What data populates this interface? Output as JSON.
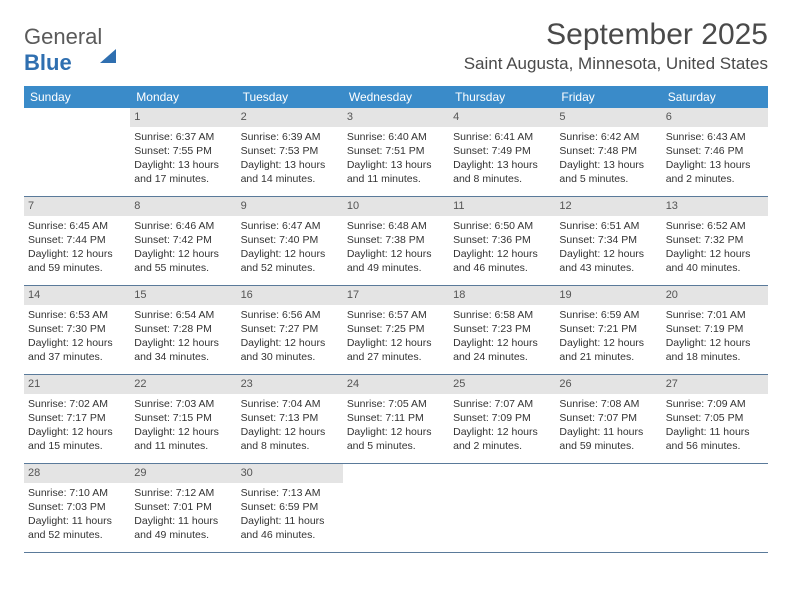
{
  "brand": {
    "part1": "General",
    "part2": "Blue"
  },
  "title": "September 2025",
  "subtitle": "Saint Augusta, Minnesota, United States",
  "colors": {
    "header_bg": "#3a8bc9",
    "header_text": "#ffffff",
    "daynum_bg": "#e4e4e4",
    "text": "#333333",
    "rule": "#5a7a9a",
    "brand_gray": "#5a5a5a",
    "brand_blue": "#2f6fb0"
  },
  "days_of_week": [
    "Sunday",
    "Monday",
    "Tuesday",
    "Wednesday",
    "Thursday",
    "Friday",
    "Saturday"
  ],
  "weeks": [
    [
      {
        "n": "",
        "empty": true
      },
      {
        "n": "1",
        "sr": "Sunrise: 6:37 AM",
        "ss": "Sunset: 7:55 PM",
        "dl1": "Daylight: 13 hours",
        "dl2": "and 17 minutes."
      },
      {
        "n": "2",
        "sr": "Sunrise: 6:39 AM",
        "ss": "Sunset: 7:53 PM",
        "dl1": "Daylight: 13 hours",
        "dl2": "and 14 minutes."
      },
      {
        "n": "3",
        "sr": "Sunrise: 6:40 AM",
        "ss": "Sunset: 7:51 PM",
        "dl1": "Daylight: 13 hours",
        "dl2": "and 11 minutes."
      },
      {
        "n": "4",
        "sr": "Sunrise: 6:41 AM",
        "ss": "Sunset: 7:49 PM",
        "dl1": "Daylight: 13 hours",
        "dl2": "and 8 minutes."
      },
      {
        "n": "5",
        "sr": "Sunrise: 6:42 AM",
        "ss": "Sunset: 7:48 PM",
        "dl1": "Daylight: 13 hours",
        "dl2": "and 5 minutes."
      },
      {
        "n": "6",
        "sr": "Sunrise: 6:43 AM",
        "ss": "Sunset: 7:46 PM",
        "dl1": "Daylight: 13 hours",
        "dl2": "and 2 minutes."
      }
    ],
    [
      {
        "n": "7",
        "sr": "Sunrise: 6:45 AM",
        "ss": "Sunset: 7:44 PM",
        "dl1": "Daylight: 12 hours",
        "dl2": "and 59 minutes."
      },
      {
        "n": "8",
        "sr": "Sunrise: 6:46 AM",
        "ss": "Sunset: 7:42 PM",
        "dl1": "Daylight: 12 hours",
        "dl2": "and 55 minutes."
      },
      {
        "n": "9",
        "sr": "Sunrise: 6:47 AM",
        "ss": "Sunset: 7:40 PM",
        "dl1": "Daylight: 12 hours",
        "dl2": "and 52 minutes."
      },
      {
        "n": "10",
        "sr": "Sunrise: 6:48 AM",
        "ss": "Sunset: 7:38 PM",
        "dl1": "Daylight: 12 hours",
        "dl2": "and 49 minutes."
      },
      {
        "n": "11",
        "sr": "Sunrise: 6:50 AM",
        "ss": "Sunset: 7:36 PM",
        "dl1": "Daylight: 12 hours",
        "dl2": "and 46 minutes."
      },
      {
        "n": "12",
        "sr": "Sunrise: 6:51 AM",
        "ss": "Sunset: 7:34 PM",
        "dl1": "Daylight: 12 hours",
        "dl2": "and 43 minutes."
      },
      {
        "n": "13",
        "sr": "Sunrise: 6:52 AM",
        "ss": "Sunset: 7:32 PM",
        "dl1": "Daylight: 12 hours",
        "dl2": "and 40 minutes."
      }
    ],
    [
      {
        "n": "14",
        "sr": "Sunrise: 6:53 AM",
        "ss": "Sunset: 7:30 PM",
        "dl1": "Daylight: 12 hours",
        "dl2": "and 37 minutes."
      },
      {
        "n": "15",
        "sr": "Sunrise: 6:54 AM",
        "ss": "Sunset: 7:28 PM",
        "dl1": "Daylight: 12 hours",
        "dl2": "and 34 minutes."
      },
      {
        "n": "16",
        "sr": "Sunrise: 6:56 AM",
        "ss": "Sunset: 7:27 PM",
        "dl1": "Daylight: 12 hours",
        "dl2": "and 30 minutes."
      },
      {
        "n": "17",
        "sr": "Sunrise: 6:57 AM",
        "ss": "Sunset: 7:25 PM",
        "dl1": "Daylight: 12 hours",
        "dl2": "and 27 minutes."
      },
      {
        "n": "18",
        "sr": "Sunrise: 6:58 AM",
        "ss": "Sunset: 7:23 PM",
        "dl1": "Daylight: 12 hours",
        "dl2": "and 24 minutes."
      },
      {
        "n": "19",
        "sr": "Sunrise: 6:59 AM",
        "ss": "Sunset: 7:21 PM",
        "dl1": "Daylight: 12 hours",
        "dl2": "and 21 minutes."
      },
      {
        "n": "20",
        "sr": "Sunrise: 7:01 AM",
        "ss": "Sunset: 7:19 PM",
        "dl1": "Daylight: 12 hours",
        "dl2": "and 18 minutes."
      }
    ],
    [
      {
        "n": "21",
        "sr": "Sunrise: 7:02 AM",
        "ss": "Sunset: 7:17 PM",
        "dl1": "Daylight: 12 hours",
        "dl2": "and 15 minutes."
      },
      {
        "n": "22",
        "sr": "Sunrise: 7:03 AM",
        "ss": "Sunset: 7:15 PM",
        "dl1": "Daylight: 12 hours",
        "dl2": "and 11 minutes."
      },
      {
        "n": "23",
        "sr": "Sunrise: 7:04 AM",
        "ss": "Sunset: 7:13 PM",
        "dl1": "Daylight: 12 hours",
        "dl2": "and 8 minutes."
      },
      {
        "n": "24",
        "sr": "Sunrise: 7:05 AM",
        "ss": "Sunset: 7:11 PM",
        "dl1": "Daylight: 12 hours",
        "dl2": "and 5 minutes."
      },
      {
        "n": "25",
        "sr": "Sunrise: 7:07 AM",
        "ss": "Sunset: 7:09 PM",
        "dl1": "Daylight: 12 hours",
        "dl2": "and 2 minutes."
      },
      {
        "n": "26",
        "sr": "Sunrise: 7:08 AM",
        "ss": "Sunset: 7:07 PM",
        "dl1": "Daylight: 11 hours",
        "dl2": "and 59 minutes."
      },
      {
        "n": "27",
        "sr": "Sunrise: 7:09 AM",
        "ss": "Sunset: 7:05 PM",
        "dl1": "Daylight: 11 hours",
        "dl2": "and 56 minutes."
      }
    ],
    [
      {
        "n": "28",
        "sr": "Sunrise: 7:10 AM",
        "ss": "Sunset: 7:03 PM",
        "dl1": "Daylight: 11 hours",
        "dl2": "and 52 minutes."
      },
      {
        "n": "29",
        "sr": "Sunrise: 7:12 AM",
        "ss": "Sunset: 7:01 PM",
        "dl1": "Daylight: 11 hours",
        "dl2": "and 49 minutes."
      },
      {
        "n": "30",
        "sr": "Sunrise: 7:13 AM",
        "ss": "Sunset: 6:59 PM",
        "dl1": "Daylight: 11 hours",
        "dl2": "and 46 minutes."
      },
      {
        "n": "",
        "empty": true
      },
      {
        "n": "",
        "empty": true
      },
      {
        "n": "",
        "empty": true
      },
      {
        "n": "",
        "empty": true
      }
    ]
  ]
}
